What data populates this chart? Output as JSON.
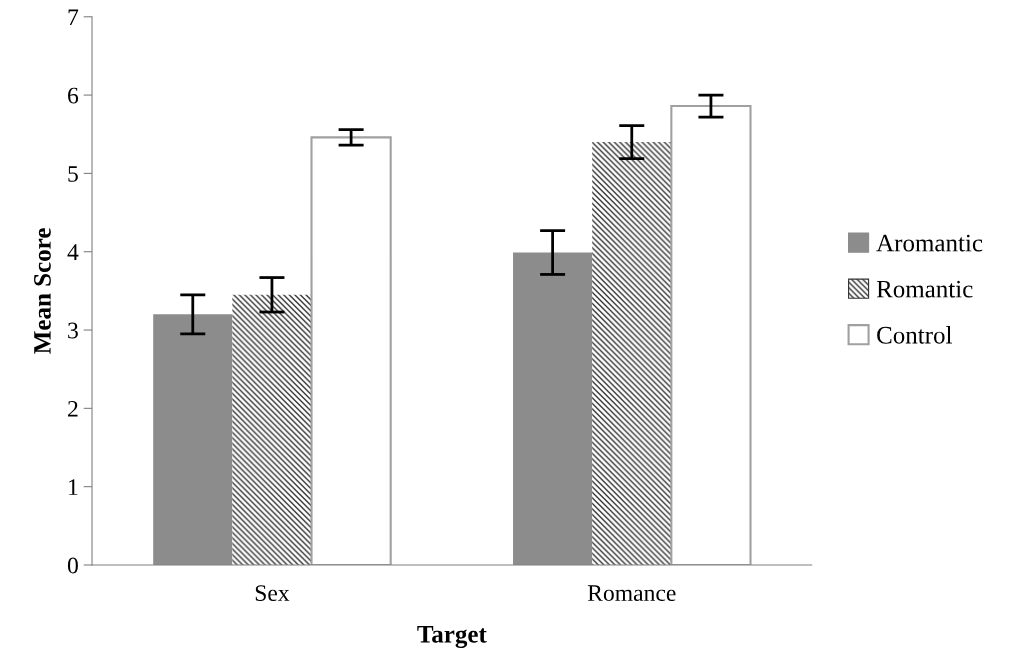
{
  "chart_data": {
    "type": "bar",
    "xlabel": "Target",
    "ylabel": "Mean Score",
    "categories": [
      "Sex",
      "Romance"
    ],
    "series": [
      {
        "name": "Aromantic",
        "color": "#8c8c8c",
        "values": [
          3.2,
          3.99
        ],
        "errors": [
          0.25,
          0.28
        ]
      },
      {
        "name": "Romantic",
        "color": "#333333",
        "values": [
          3.45,
          5.4
        ],
        "errors": [
          0.22,
          0.21
        ]
      },
      {
        "name": "Control",
        "color": "#ffffff",
        "values": [
          5.46,
          5.86
        ],
        "errors": [
          0.1,
          0.14
        ]
      }
    ],
    "ylim": [
      0,
      7
    ],
    "yticks": [
      0,
      1,
      2,
      3,
      4,
      5,
      6,
      7
    ],
    "grid": false,
    "legend": "right"
  }
}
